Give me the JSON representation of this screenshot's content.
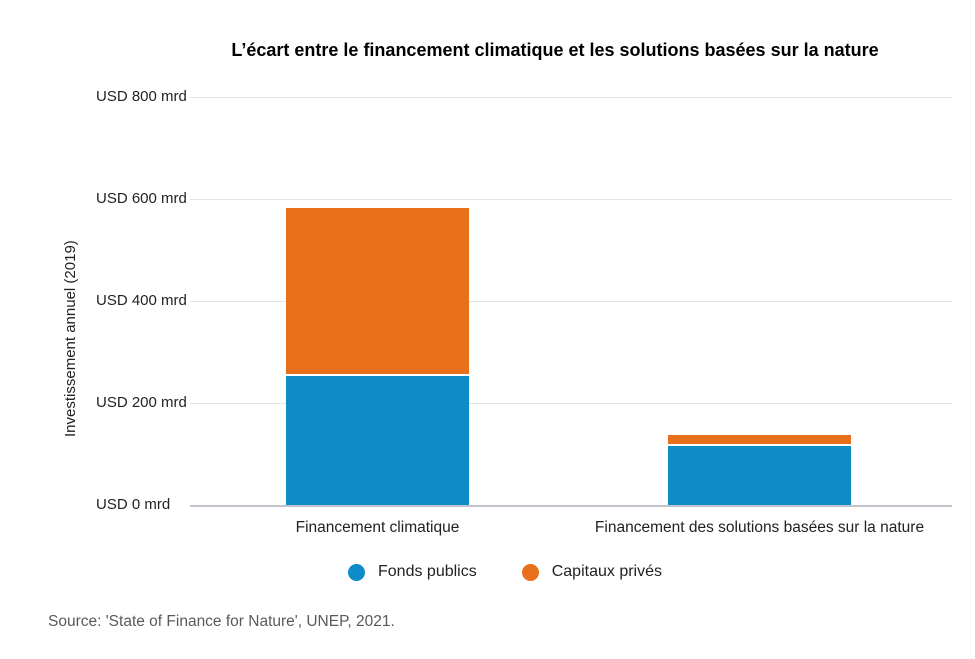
{
  "chart_data": {
    "type": "bar",
    "stacked": true,
    "title": "L’écart entre le financement climatique et les solutions basées sur la nature",
    "ylabel": "Investissement annuel (2019)",
    "categories": [
      "Financement climatique",
      "Financement des solutions basées sur la nature"
    ],
    "series": [
      {
        "name": "Fonds publics",
        "color": "#0d8cc7",
        "values": [
          253,
          115
        ]
      },
      {
        "name": "Capitaux privés",
        "color": "#e8701a",
        "values": [
          326,
          18
        ]
      }
    ],
    "ylim": [
      0,
      800
    ],
    "yticks": [
      {
        "value": 0,
        "label": "USD 0 mrd"
      },
      {
        "value": 200,
        "label": "USD 200 mrd"
      },
      {
        "value": 400,
        "label": "USD 400 mrd"
      },
      {
        "value": 600,
        "label": "USD 600 mrd"
      },
      {
        "value": 800,
        "label": "USD 800 mrd"
      }
    ],
    "grid": true,
    "legend_position": "bottom",
    "source": "Source: 'State of Finance for Nature', UNEP, 2021."
  },
  "colors": {
    "grid_line": "#e4e4e4",
    "axis_line": "#c3c3cb",
    "title_text": "#000000",
    "label_text": "#222222",
    "source_text": "#5a5a5c"
  }
}
